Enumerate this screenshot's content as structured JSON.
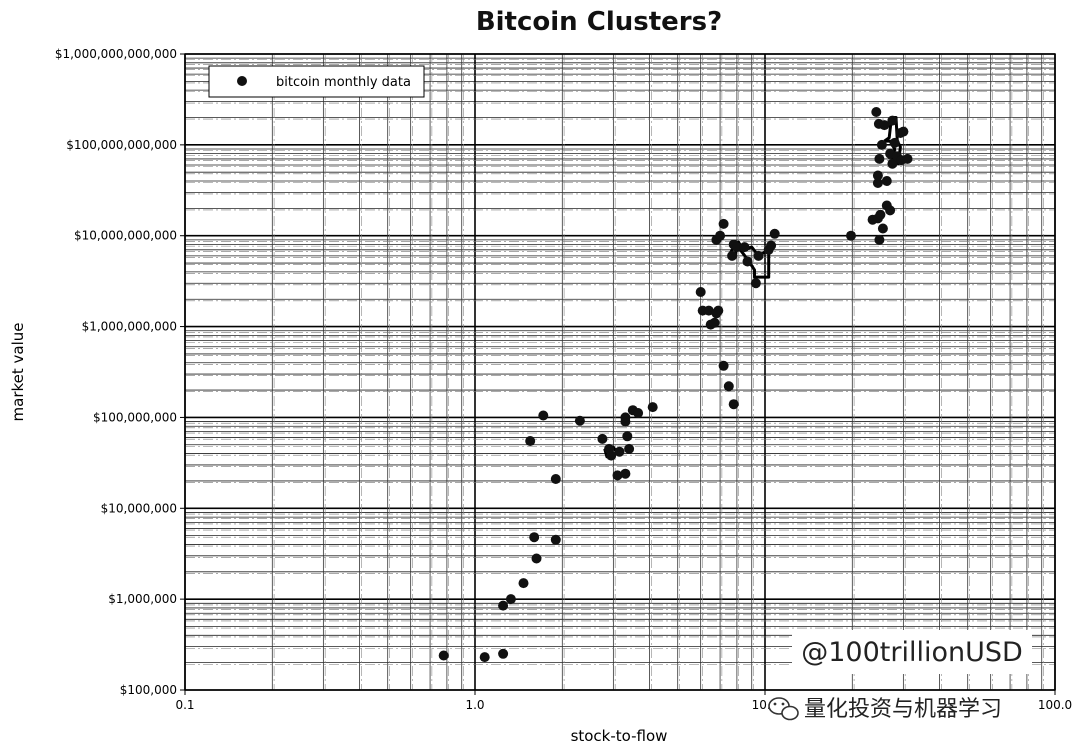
{
  "chart_data": {
    "type": "scatter",
    "title": "Bitcoin Clusters?",
    "xlabel": "stock-to-flow",
    "ylabel": "market value",
    "x_scale": "log",
    "y_scale": "log",
    "xlim": [
      0.1,
      100
    ],
    "ylim": [
      100000,
      1000000000000
    ],
    "x_ticks": [
      0.1,
      1,
      10,
      100
    ],
    "x_tick_labels": [
      "0.1",
      "1.0",
      "10.0",
      "100.0"
    ],
    "y_ticks": [
      100000,
      1000000,
      10000000,
      100000000,
      1000000000,
      10000000000,
      100000000000,
      1000000000000
    ],
    "y_tick_labels": [
      "$100,000",
      "$1,000,000",
      "$10,000,000",
      "$100,000,000",
      "$1,000,000,000",
      "$10,000,000,000",
      "$100,000,000,000",
      "$1,000,000,000,000"
    ],
    "grid": true,
    "legend": {
      "entries": [
        "bitcoin monthly data"
      ],
      "placement": "top-left"
    },
    "series": [
      {
        "name": "bitcoin monthly data",
        "marker": "circle",
        "color": "#111111",
        "points": [
          [
            0.78,
            240000
          ],
          [
            1.08,
            230000
          ],
          [
            1.25,
            250000
          ],
          [
            1.25,
            850000
          ],
          [
            1.33,
            1000000
          ],
          [
            1.47,
            1500000
          ],
          [
            1.6,
            4800000
          ],
          [
            1.63,
            2800000
          ],
          [
            1.9,
            4500000
          ],
          [
            1.9,
            21000000
          ],
          [
            1.55,
            55000000
          ],
          [
            1.72,
            105000000
          ],
          [
            2.3,
            92000000
          ],
          [
            2.75,
            58000000
          ],
          [
            2.9,
            45000000
          ],
          [
            2.95,
            38000000
          ],
          [
            3.1,
            23000000
          ],
          [
            3.15,
            42000000
          ],
          [
            3.3,
            24000000
          ],
          [
            3.3,
            90000000
          ],
          [
            3.35,
            62000000
          ],
          [
            3.4,
            45000000
          ],
          [
            3.5,
            120000000
          ],
          [
            3.65,
            112000000
          ],
          [
            3.3,
            100000000
          ],
          [
            4.1,
            130000000
          ],
          [
            6.0,
            2400000000
          ],
          [
            6.1,
            1500000000
          ],
          [
            6.4,
            1500000000
          ],
          [
            6.5,
            1050000000
          ],
          [
            6.7,
            1100000000
          ],
          [
            6.9,
            1500000000
          ],
          [
            6.8,
            1400000000
          ],
          [
            7.2,
            370000000
          ],
          [
            7.5,
            220000000
          ],
          [
            7.8,
            140000000
          ],
          [
            6.8,
            9000000000
          ],
          [
            7.0,
            10000000000
          ],
          [
            7.2,
            13500000000
          ],
          [
            7.7,
            6000000000
          ],
          [
            7.8,
            8000000000
          ],
          [
            8.0,
            7500000000
          ],
          [
            8.5,
            7500000000
          ],
          [
            8.7,
            5200000000
          ],
          [
            9.3,
            3000000000
          ],
          [
            9.5,
            6000000000
          ],
          [
            10.3,
            7000000000
          ],
          [
            10.5,
            7800000000
          ],
          [
            10.8,
            10500000000
          ],
          [
            19.8,
            10000000000
          ],
          [
            23.5,
            15000000000
          ],
          [
            24.5,
            15500000000
          ],
          [
            25.0,
            17000000000
          ],
          [
            25.5,
            12000000000
          ],
          [
            24.8,
            9000000000
          ],
          [
            26.3,
            21500000000
          ],
          [
            27.0,
            19000000000
          ],
          [
            24.5,
            38000000000
          ],
          [
            24.5,
            46000000000
          ],
          [
            26.3,
            40000000000
          ],
          [
            24.8,
            70000000000
          ],
          [
            27.0,
            80000000000
          ],
          [
            27.5,
            62000000000
          ],
          [
            28.5,
            75000000000
          ],
          [
            29.5,
            68000000000
          ],
          [
            31.0,
            70000000000
          ],
          [
            24.2,
            230000000000
          ],
          [
            24.7,
            170000000000
          ],
          [
            25.3,
            100000000000
          ],
          [
            25.8,
            165000000000
          ],
          [
            27.5,
            185000000000
          ],
          [
            29.3,
            135000000000
          ],
          [
            30.0,
            140000000000
          ],
          [
            28.0,
            105000000000
          ]
        ]
      }
    ],
    "annotations": [
      {
        "kind": "loop-outline",
        "points": [
          [
            2.8,
            45000000
          ],
          [
            2.85,
            37000000
          ],
          [
            3.1,
            40000000
          ],
          [
            3.0,
            47000000
          ],
          [
            2.8,
            45000000
          ]
        ]
      },
      {
        "kind": "loop-outline",
        "points": [
          [
            7.5,
            6000000000
          ],
          [
            7.9,
            6000000000
          ],
          [
            8.0,
            7800000000
          ],
          [
            8.7,
            5500000000
          ],
          [
            9.2,
            4200000000
          ],
          [
            9.2,
            3500000000
          ],
          [
            10.3,
            3500000000
          ],
          [
            10.3,
            7000000000
          ],
          [
            9.5,
            6000000000
          ],
          [
            9.0,
            7500000000
          ],
          [
            8.4,
            7000000000
          ],
          [
            8.1,
            8500000000
          ],
          [
            7.7,
            7000000000
          ],
          [
            7.5,
            6000000000
          ]
        ]
      },
      {
        "kind": "loop-outline",
        "points": [
          [
            25.8,
            110000000000
          ],
          [
            26.8,
            120000000000
          ],
          [
            27.3,
            200000000000
          ],
          [
            28.3,
            200000000000
          ],
          [
            28.6,
            110000000000
          ],
          [
            29.3,
            95000000000
          ],
          [
            28.8,
            62000000000
          ],
          [
            27.6,
            70000000000
          ],
          [
            28.0,
            90000000000
          ],
          [
            27.0,
            110000000000
          ],
          [
            25.8,
            110000000000
          ]
        ]
      }
    ]
  },
  "watermarks": {
    "handle": "@100trillionUSD",
    "brand": "量化投资与机器学习"
  }
}
